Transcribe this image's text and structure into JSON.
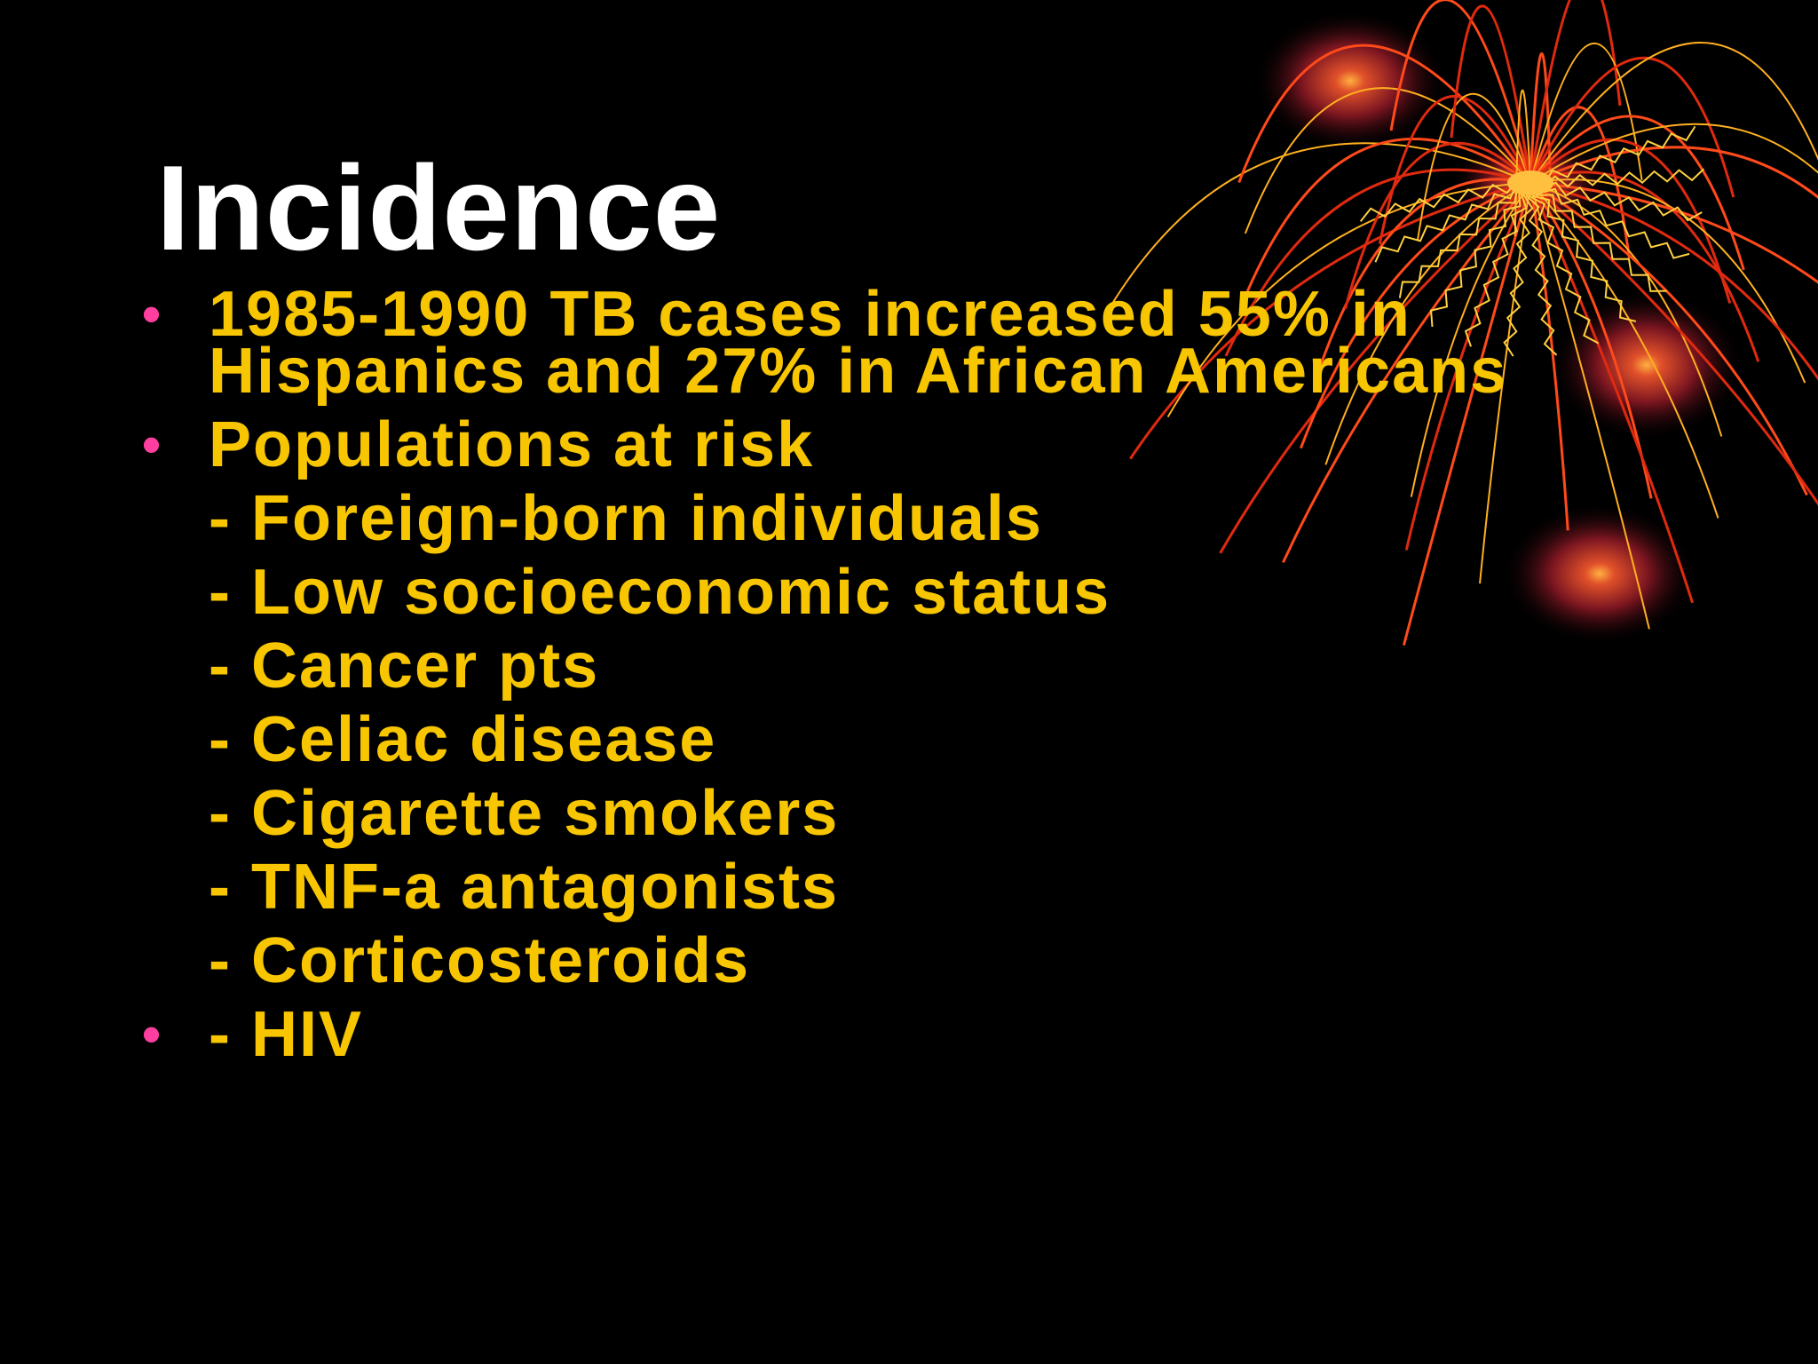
{
  "title": "Incidence",
  "items": [
    {
      "text": "1985-1990 TB cases increased 55% in Hispanics and 27% in African Americans",
      "bulleted": true
    },
    {
      "text": "Populations at risk",
      "bulleted": true
    },
    {
      "text": "- Foreign-born individuals",
      "bulleted": false
    },
    {
      "text": "- Low socioeconomic status",
      "bulleted": false
    },
    {
      "text": "- Cancer pts",
      "bulleted": false
    },
    {
      "text": "- Celiac disease",
      "bulleted": false
    },
    {
      "text": "- Cigarette smokers",
      "bulleted": false
    },
    {
      "text": "- TNF-a antagonists",
      "bulleted": false
    },
    {
      "text": "- Corticosteroids",
      "bulleted": false
    },
    {
      "text": "- HIV",
      "bulleted": true
    }
  ]
}
